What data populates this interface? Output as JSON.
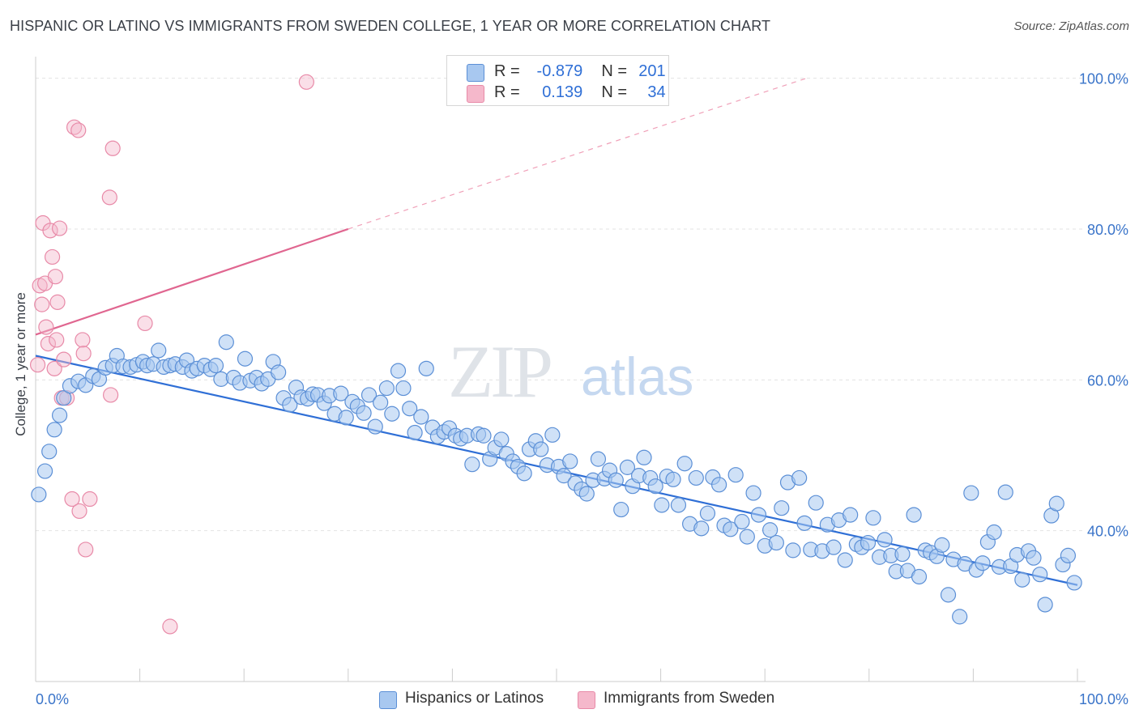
{
  "header": {
    "title": "HISPANIC OR LATINO VS IMMIGRANTS FROM SWEDEN COLLEGE, 1 YEAR OR MORE CORRELATION CHART",
    "source": "Source: ZipAtlas.com"
  },
  "watermark": {
    "zip": "ZIP",
    "atlas": "atlas"
  },
  "legend_stats": {
    "series1": {
      "r_label": "R =",
      "r_value": "-0.879",
      "n_label": "N =",
      "n_value": "201"
    },
    "series2": {
      "r_label": "R =",
      "r_value": "0.139",
      "n_label": "N =",
      "n_value": "34"
    }
  },
  "colors": {
    "blue_fill": "#a8c8f0",
    "blue_stroke": "#5b8fd6",
    "blue_line": "#2f6fd6",
    "pink_fill": "#f5b8cb",
    "pink_stroke": "#e88aa8",
    "pink_line": "#e06690",
    "tick_text": "#3a74c9"
  },
  "chart_data": {
    "type": "scatter",
    "title": "HISPANIC OR LATINO VS IMMIGRANTS FROM SWEDEN COLLEGE, 1 YEAR OR MORE CORRELATION CHART",
    "xlabel": "",
    "ylabel": "College, 1 year or more",
    "xlim": [
      0,
      100
    ],
    "ylim": [
      20,
      102
    ],
    "x_tick_labels": [
      "0.0%",
      "100.0%"
    ],
    "y_ticks": [
      40,
      60,
      80,
      100
    ],
    "y_tick_labels": [
      "40.0%",
      "60.0%",
      "80.0%",
      "100.0%"
    ],
    "legend_position": "bottom-center",
    "series": [
      {
        "name": "Hispanics or Latinos",
        "color": "#5b8fd6",
        "trend": {
          "x": [
            0,
            100
          ],
          "y": [
            63.2,
            32.8
          ],
          "style": "solid"
        },
        "points": [
          [
            0.3,
            44.8
          ],
          [
            0.9,
            47.9
          ],
          [
            1.3,
            50.5
          ],
          [
            1.8,
            53.4
          ],
          [
            2.3,
            55.3
          ],
          [
            2.7,
            57.6
          ],
          [
            3.3,
            59.2
          ],
          [
            4.1,
            59.8
          ],
          [
            4.8,
            59.3
          ],
          [
            5.5,
            60.5
          ],
          [
            6.1,
            60.1
          ],
          [
            6.7,
            61.6
          ],
          [
            7.4,
            61.9
          ],
          [
            7.8,
            63.2
          ],
          [
            8.4,
            61.8
          ],
          [
            9.1,
            61.7
          ],
          [
            9.7,
            62.0
          ],
          [
            10.3,
            62.4
          ],
          [
            10.7,
            61.9
          ],
          [
            11.3,
            62.1
          ],
          [
            11.8,
            63.9
          ],
          [
            12.3,
            61.7
          ],
          [
            12.9,
            61.9
          ],
          [
            13.4,
            62.1
          ],
          [
            14.1,
            61.7
          ],
          [
            14.5,
            62.6
          ],
          [
            15.0,
            61.2
          ],
          [
            15.5,
            61.5
          ],
          [
            16.2,
            61.9
          ],
          [
            16.8,
            61.4
          ],
          [
            17.3,
            61.9
          ],
          [
            17.8,
            60.1
          ],
          [
            18.3,
            65.0
          ],
          [
            19.0,
            60.3
          ],
          [
            19.6,
            59.6
          ],
          [
            20.1,
            62.8
          ],
          [
            20.6,
            59.9
          ],
          [
            21.2,
            60.3
          ],
          [
            21.7,
            59.5
          ],
          [
            22.3,
            60.1
          ],
          [
            22.8,
            62.4
          ],
          [
            23.3,
            61.0
          ],
          [
            23.8,
            57.6
          ],
          [
            24.4,
            56.7
          ],
          [
            25.0,
            59.0
          ],
          [
            25.5,
            57.7
          ],
          [
            26.1,
            57.5
          ],
          [
            26.6,
            58.1
          ],
          [
            27.1,
            58.0
          ],
          [
            27.7,
            56.9
          ],
          [
            28.2,
            57.9
          ],
          [
            28.7,
            55.5
          ],
          [
            29.3,
            58.2
          ],
          [
            29.8,
            55.0
          ],
          [
            30.4,
            57.1
          ],
          [
            30.9,
            56.5
          ],
          [
            31.5,
            55.6
          ],
          [
            32.0,
            58.0
          ],
          [
            32.6,
            53.8
          ],
          [
            33.1,
            57.0
          ],
          [
            33.7,
            58.9
          ],
          [
            34.2,
            55.5
          ],
          [
            34.8,
            61.2
          ],
          [
            35.3,
            58.9
          ],
          [
            35.9,
            56.2
          ],
          [
            36.4,
            53.0
          ],
          [
            37.0,
            55.1
          ],
          [
            37.5,
            61.5
          ],
          [
            38.1,
            53.7
          ],
          [
            38.6,
            52.5
          ],
          [
            39.2,
            53.1
          ],
          [
            39.7,
            53.6
          ],
          [
            40.3,
            52.6
          ],
          [
            40.8,
            52.2
          ],
          [
            41.4,
            52.6
          ],
          [
            41.9,
            48.8
          ],
          [
            42.5,
            52.8
          ],
          [
            43.0,
            52.6
          ],
          [
            43.6,
            49.5
          ],
          [
            44.1,
            51.0
          ],
          [
            44.7,
            52.1
          ],
          [
            45.2,
            50.2
          ],
          [
            45.8,
            49.2
          ],
          [
            46.3,
            48.5
          ],
          [
            46.9,
            47.6
          ],
          [
            47.4,
            50.8
          ],
          [
            48.0,
            51.9
          ],
          [
            48.5,
            50.8
          ],
          [
            49.1,
            48.7
          ],
          [
            49.6,
            52.7
          ],
          [
            50.2,
            48.5
          ],
          [
            50.7,
            47.3
          ],
          [
            51.3,
            49.2
          ],
          [
            51.8,
            46.3
          ],
          [
            52.4,
            45.5
          ],
          [
            52.9,
            44.9
          ],
          [
            53.5,
            46.7
          ],
          [
            54.0,
            49.5
          ],
          [
            54.6,
            46.9
          ],
          [
            55.1,
            48.0
          ],
          [
            55.7,
            46.7
          ],
          [
            56.2,
            42.8
          ],
          [
            56.8,
            48.4
          ],
          [
            57.3,
            45.9
          ],
          [
            57.9,
            47.3
          ],
          [
            58.4,
            49.7
          ],
          [
            59.0,
            47.0
          ],
          [
            59.5,
            45.9
          ],
          [
            60.1,
            43.4
          ],
          [
            60.6,
            47.2
          ],
          [
            61.2,
            46.8
          ],
          [
            61.7,
            43.4
          ],
          [
            62.3,
            48.9
          ],
          [
            62.8,
            40.9
          ],
          [
            63.4,
            47.0
          ],
          [
            63.9,
            40.3
          ],
          [
            64.5,
            42.3
          ],
          [
            65.0,
            47.1
          ],
          [
            65.6,
            46.1
          ],
          [
            66.1,
            40.7
          ],
          [
            66.7,
            40.2
          ],
          [
            67.2,
            47.4
          ],
          [
            67.8,
            41.2
          ],
          [
            68.3,
            39.2
          ],
          [
            68.9,
            45.0
          ],
          [
            69.4,
            42.1
          ],
          [
            70.0,
            38.0
          ],
          [
            70.5,
            40.1
          ],
          [
            71.1,
            38.4
          ],
          [
            71.6,
            43.0
          ],
          [
            72.2,
            46.4
          ],
          [
            72.7,
            37.4
          ],
          [
            73.3,
            47.0
          ],
          [
            73.8,
            41.0
          ],
          [
            74.4,
            37.5
          ],
          [
            74.9,
            43.7
          ],
          [
            75.5,
            37.3
          ],
          [
            76.0,
            40.8
          ],
          [
            76.6,
            37.8
          ],
          [
            77.1,
            41.4
          ],
          [
            77.7,
            36.1
          ],
          [
            78.2,
            42.1
          ],
          [
            78.8,
            38.2
          ],
          [
            79.3,
            37.8
          ],
          [
            79.9,
            38.4
          ],
          [
            80.4,
            41.7
          ],
          [
            81.0,
            36.5
          ],
          [
            81.5,
            38.8
          ],
          [
            82.1,
            36.7
          ],
          [
            82.6,
            34.6
          ],
          [
            83.2,
            36.9
          ],
          [
            83.7,
            34.7
          ],
          [
            84.3,
            42.1
          ],
          [
            84.8,
            33.9
          ],
          [
            85.4,
            37.4
          ],
          [
            85.9,
            37.1
          ],
          [
            86.5,
            36.6
          ],
          [
            87.0,
            38.1
          ],
          [
            87.6,
            31.5
          ],
          [
            88.1,
            36.2
          ],
          [
            88.7,
            28.6
          ],
          [
            89.2,
            35.6
          ],
          [
            89.8,
            45.0
          ],
          [
            90.3,
            34.8
          ],
          [
            90.9,
            35.7
          ],
          [
            91.4,
            38.5
          ],
          [
            92.0,
            39.8
          ],
          [
            92.5,
            35.2
          ],
          [
            93.1,
            45.1
          ],
          [
            93.6,
            35.3
          ],
          [
            94.2,
            36.8
          ],
          [
            94.7,
            33.5
          ],
          [
            95.3,
            37.3
          ],
          [
            95.8,
            36.4
          ],
          [
            96.4,
            34.2
          ],
          [
            96.9,
            30.2
          ],
          [
            97.5,
            42.0
          ],
          [
            98.0,
            43.6
          ],
          [
            98.6,
            35.5
          ],
          [
            99.1,
            36.7
          ],
          [
            99.7,
            33.1
          ]
        ]
      },
      {
        "name": "Immigrants from Sweden",
        "color": "#e88aa8",
        "trend": {
          "x": [
            0,
            30
          ],
          "y": [
            66.0,
            80.0
          ],
          "style": "solid",
          "extension": {
            "x": [
              30,
              74
            ],
            "y": [
              80.0,
              100.0
            ],
            "style": "dashed"
          }
        },
        "points": [
          [
            0.2,
            62.0
          ],
          [
            0.4,
            72.5
          ],
          [
            0.6,
            70.0
          ],
          [
            0.7,
            80.8
          ],
          [
            0.9,
            72.8
          ],
          [
            1.0,
            67.0
          ],
          [
            1.2,
            64.8
          ],
          [
            1.4,
            79.8
          ],
          [
            1.6,
            76.3
          ],
          [
            1.8,
            61.5
          ],
          [
            1.9,
            73.7
          ],
          [
            2.0,
            65.3
          ],
          [
            2.1,
            70.3
          ],
          [
            2.3,
            80.1
          ],
          [
            2.5,
            57.6
          ],
          [
            2.7,
            62.7
          ],
          [
            3.0,
            57.6
          ],
          [
            3.5,
            44.2
          ],
          [
            3.7,
            93.5
          ],
          [
            4.1,
            93.1
          ],
          [
            4.2,
            42.6
          ],
          [
            4.5,
            65.3
          ],
          [
            4.6,
            63.5
          ],
          [
            4.8,
            37.5
          ],
          [
            5.2,
            44.2
          ],
          [
            7.1,
            84.2
          ],
          [
            7.2,
            58.0
          ],
          [
            7.4,
            90.7
          ],
          [
            10.5,
            67.5
          ],
          [
            12.9,
            27.3
          ],
          [
            26.0,
            99.5
          ]
        ]
      }
    ]
  },
  "bottom_legend": {
    "item1": "Hispanics or Latinos",
    "item2": "Immigrants from Sweden"
  }
}
